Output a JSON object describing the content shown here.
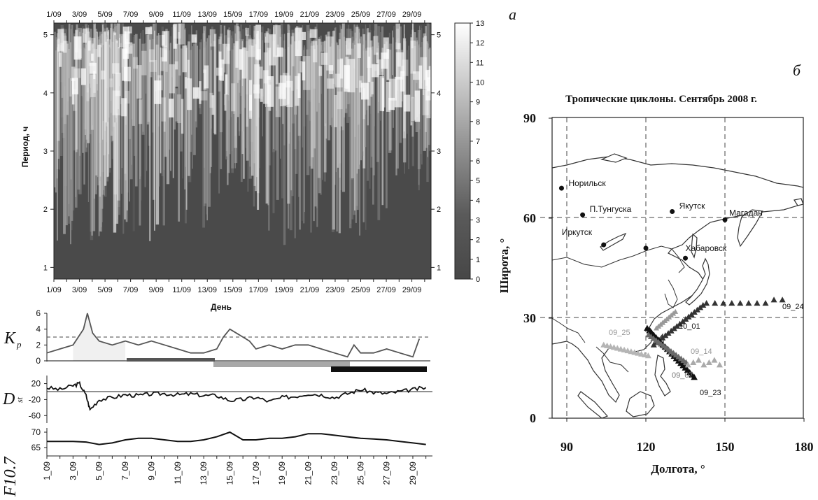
{
  "panel_labels": {
    "a": "a",
    "b": "б"
  },
  "spectrogram": {
    "top_ticks": [
      "1/09",
      "3/09",
      "5/09",
      "7/09",
      "9/09",
      "11/09",
      "13/09",
      "15/09",
      "17/09",
      "19/09",
      "21/09",
      "23/09",
      "25/09",
      "27/09",
      "29/09"
    ],
    "bottom_ticks": [
      "1/09",
      "3/09",
      "5/09",
      "7/09",
      "9/09",
      "11/09",
      "13/09",
      "15/09",
      "17/09",
      "19/09",
      "21/09",
      "23/09",
      "25/09",
      "27/09",
      "29/09"
    ],
    "y_ticks": [
      "1",
      "2",
      "3",
      "4",
      "5"
    ],
    "ylabel": "Период, ч",
    "xlabel": "День",
    "colorbar_ticks": [
      "0",
      "1",
      "2",
      "3",
      "4",
      "5",
      "6",
      "7",
      "8",
      "9",
      "10",
      "11",
      "12",
      "13"
    ]
  },
  "kp": {
    "label_main": "K",
    "label_sub": "p",
    "y_ticks": [
      "0",
      "2",
      "4",
      "6"
    ],
    "reference": 3
  },
  "dst": {
    "label_main": "D",
    "label_sub": "st",
    "y_ticks": [
      "20",
      "-20",
      "-60"
    ]
  },
  "f107": {
    "label": "F10.7",
    "y_ticks": [
      "65",
      "70"
    ]
  },
  "bottom_axis_ticks": [
    "1_09",
    "3_09",
    "5_09",
    "7_09",
    "9_09",
    "11_09",
    "13_09",
    "15_09",
    "17_09",
    "19_09",
    "21_09",
    "23_09",
    "25_09",
    "27_09",
    "29_09"
  ],
  "map": {
    "title": "Тропические циклоны. Сентябрь 2008 г.",
    "xlabel": "Долгота, °",
    "ylabel": "Широта, °",
    "x_ticks": [
      "90",
      "120",
      "150",
      "180"
    ],
    "y_ticks": [
      "0",
      "30",
      "60",
      "90"
    ],
    "cities": [
      {
        "name": "Норильск",
        "lon": 88,
        "lat": 69
      },
      {
        "name": "П.Тунгуска",
        "lon": 96,
        "lat": 61
      },
      {
        "name": "Якутск",
        "lon": 130,
        "lat": 62
      },
      {
        "name": "Магадан",
        "lon": 150,
        "lat": 59.5
      },
      {
        "name": "Иркутск",
        "lon": 104,
        "lat": 52
      },
      {
        "name": "",
        "lon": 120,
        "lat": 51
      },
      {
        "name": "Хабаровск",
        "lon": 135,
        "lat": 48
      }
    ],
    "track_labels": [
      "09_24",
      "10_01",
      "09_25",
      "09_14",
      "09_07",
      "09_23"
    ]
  },
  "chart_data": [
    {
      "type": "heatmap",
      "xlabel": "День",
      "ylabel": "Период, ч",
      "x_range": [
        "1/09",
        "30/09"
      ],
      "y_range": [
        0.8,
        5.2
      ],
      "colorbar_range": [
        0,
        13
      ]
    },
    {
      "type": "line",
      "ylabel": "Kp",
      "x": [
        1,
        2,
        3,
        3.8,
        4.1,
        4.5,
        5,
        6,
        7,
        8,
        9,
        10,
        11,
        12,
        13,
        14,
        14.5,
        15,
        15.5,
        16,
        16.5,
        17,
        18,
        19,
        20,
        21,
        22,
        23,
        24,
        24.5,
        25,
        26,
        27,
        28,
        29,
        29.5
      ],
      "y": [
        1,
        1.5,
        2,
        4,
        6,
        3.5,
        2.5,
        2,
        2.5,
        2,
        2.5,
        2,
        1.5,
        1,
        1,
        1.5,
        3,
        4,
        3.5,
        3,
        2.5,
        1.5,
        2,
        1.5,
        2,
        2,
        1.5,
        1,
        0.5,
        2,
        1,
        1,
        1.5,
        1,
        0.5,
        2.8
      ],
      "ylim": [
        0,
        6
      ],
      "reference_line": 3
    },
    {
      "type": "line",
      "ylabel": "Dst",
      "x": [
        1,
        2,
        3,
        3.5,
        4,
        4.3,
        5,
        6,
        7,
        8,
        9,
        10,
        11,
        12,
        13,
        14,
        15,
        16,
        17,
        18,
        19,
        20,
        21,
        22,
        23,
        24,
        25,
        26,
        27,
        28,
        29,
        30
      ],
      "y": [
        10,
        5,
        15,
        20,
        -10,
        -45,
        -20,
        -15,
        -8,
        -10,
        -6,
        -5,
        -8,
        -6,
        -10,
        -10,
        -22,
        -20,
        -14,
        -25,
        -15,
        -12,
        -5,
        -8,
        -15,
        -5,
        5,
        -2,
        -5,
        0,
        5,
        10
      ],
      "ylim": [
        -60,
        20
      ]
    },
    {
      "type": "line",
      "ylabel": "F10.7",
      "x": [
        1,
        2,
        3,
        4,
        5,
        6,
        7,
        8,
        9,
        10,
        11,
        12,
        13,
        14,
        15,
        16,
        17,
        18,
        19,
        20,
        21,
        22,
        23,
        24,
        25,
        26,
        27,
        28,
        29,
        30
      ],
      "y": [
        67,
        67,
        67,
        66.8,
        66,
        66.5,
        67.5,
        68,
        68,
        67.5,
        67,
        67,
        67.5,
        68.5,
        70,
        67.5,
        67.5,
        68,
        68,
        68.5,
        69.5,
        69.5,
        69,
        68.5,
        68,
        67.8,
        67.5,
        67,
        66.5,
        66
      ],
      "ylim": [
        65,
        71
      ]
    }
  ]
}
